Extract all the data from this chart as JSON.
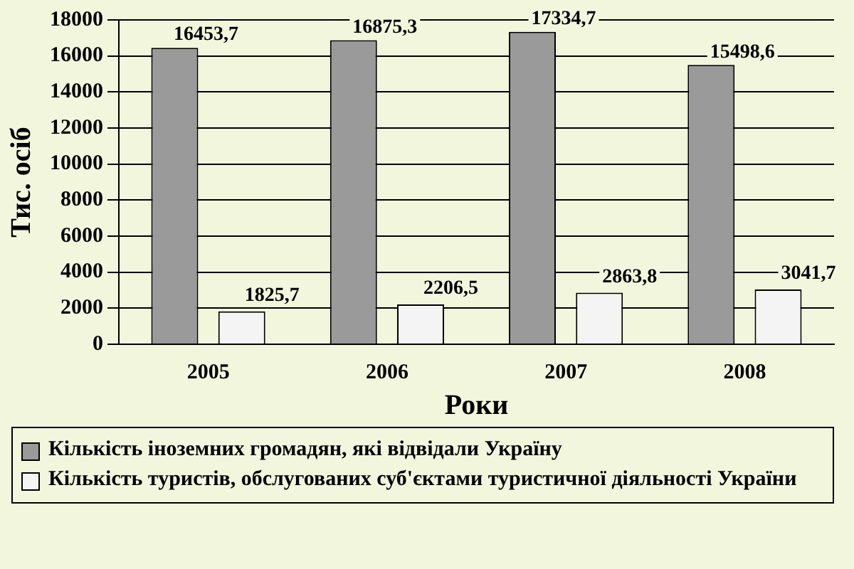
{
  "chart_data": {
    "type": "bar",
    "xlabel": "Роки",
    "ylabel": "Тис. осіб",
    "categories": [
      "2005",
      "2006",
      "2007",
      "2008"
    ],
    "series": [
      {
        "name": "Кількість іноземних громадян, які відвідали Україну",
        "color": "#9a9a9a",
        "values": [
          16453.7,
          16875.3,
          17334.7,
          15498.6
        ],
        "value_labels": [
          "16453,7",
          "16875,3",
          "17334,7",
          "15498,6"
        ]
      },
      {
        "name": "Кількість туристів, обслугованих суб'єктами туристичної діяльності України",
        "color": "#f4f4f4",
        "values": [
          1825.7,
          2206.5,
          2863.8,
          3041.7
        ],
        "value_labels": [
          "1825,7",
          "2206,5",
          "2863,8",
          "3041,7"
        ]
      }
    ],
    "ylim": [
      0,
      18000
    ],
    "yticks": [
      0,
      2000,
      4000,
      6000,
      8000,
      10000,
      12000,
      14000,
      16000,
      18000
    ],
    "grid": "y",
    "legend": "bottom"
  }
}
